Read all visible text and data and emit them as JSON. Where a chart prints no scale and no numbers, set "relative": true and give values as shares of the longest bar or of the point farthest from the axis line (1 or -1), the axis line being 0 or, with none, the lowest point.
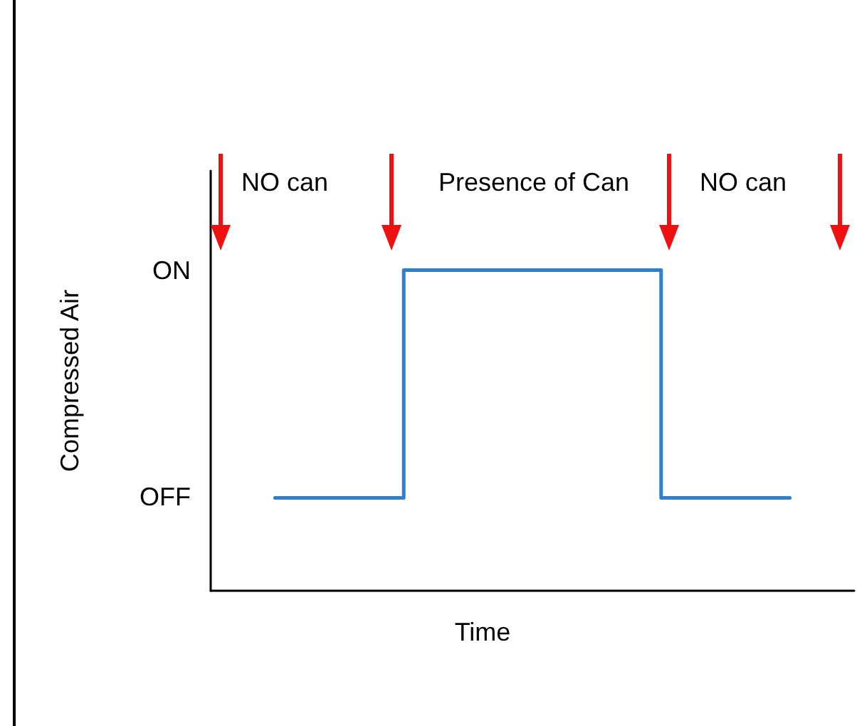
{
  "chart_data": {
    "type": "step",
    "xlabel": "Time",
    "ylabel": "Compressed Air",
    "relative": true,
    "categories": [
      null,
      null,
      null,
      null,
      null
    ],
    "series": [
      {
        "color": "#2f7fd0",
        "values": [
          0.29,
          1,
          1,
          0.29,
          0.29
        ]
      }
    ],
    "grid": false,
    "marker": "none",
    "line_style": "solid",
    "annotations": [
      "NO can",
      "Presence of Can",
      "NO can",
      "ON",
      "OFF"
    ]
  }
}
